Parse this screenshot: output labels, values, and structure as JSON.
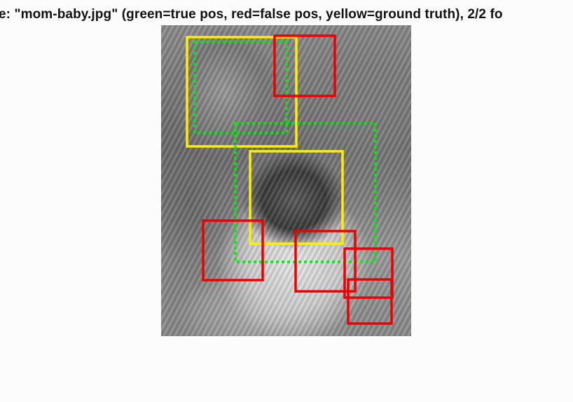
{
  "title": "e: \"mom-baby.jpg\" (green=true pos, red=false pos, yellow=ground truth), 2/2 fo",
  "colors": {
    "true_pos": "#00ee00",
    "false_pos": "#ee0000",
    "ground_truth": "#ffee00",
    "background": "#fcfcfc"
  },
  "legend": {
    "green": "true pos",
    "red": "false pos",
    "yellow": "ground truth"
  },
  "image_name": "mom-baby.jpg"
}
